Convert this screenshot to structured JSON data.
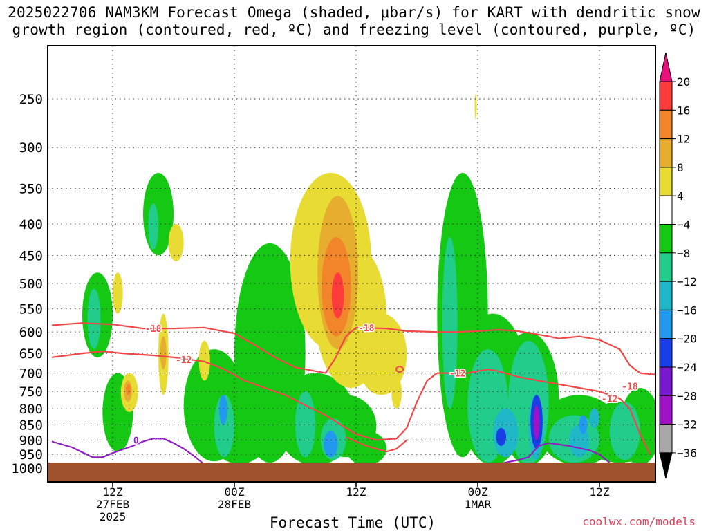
{
  "title_line1": "2025022706 NAM3KM Forecast Omega (shaded, μbar/s) for KART with dendritic snow",
  "title_line2": "growth region (contoured, red, ºC) and freezing level (contoured, purple, ºC)",
  "credit": "coolwx.com/models",
  "chart_data": {
    "type": "heatmap",
    "title": "2025022706 NAM3KM Forecast Omega (shaded, μbar/s) for KART with dendritic snow growth region (contoured, red, ºC) and freezing level (contoured, purple, ºC)",
    "xlabel": "Forecast Time (UTC)",
    "ylabel": "",
    "x_range_hours_from_init": [
      0,
      60
    ],
    "y_scale": "log pressure (hPa), inverted",
    "y_range": [
      1000,
      200
    ],
    "y_ticks": [
      250,
      300,
      350,
      400,
      450,
      500,
      550,
      600,
      650,
      700,
      750,
      800,
      850,
      900,
      950,
      1000
    ],
    "x_ticks": [
      {
        "hour": 6,
        "label1": "12Z",
        "label2": "27FEB",
        "label3": "2025"
      },
      {
        "hour": 18,
        "label1": "00Z",
        "label2": "28FEB",
        "label3": ""
      },
      {
        "hour": 30,
        "label1": "12Z",
        "label2": "",
        "label3": ""
      },
      {
        "hour": 42,
        "label1": "00Z",
        "label2": "1MAR",
        "label3": ""
      },
      {
        "hour": 54,
        "label1": "12Z",
        "label2": "",
        "label3": ""
      }
    ],
    "grid": true,
    "colorbar": {
      "ticks": [
        "20",
        "16",
        "12",
        "8",
        "4",
        "−4",
        "−8",
        "−12",
        "−16",
        "−20",
        "−24",
        "−28",
        "−32",
        "−36"
      ],
      "bins": [
        {
          "range": [
            16,
            20
          ],
          "color": "#ff3b3b"
        },
        {
          "range": [
            12,
            16
          ],
          "color": "#f2842a"
        },
        {
          "range": [
            8,
            12
          ],
          "color": "#e6ad2e"
        },
        {
          "range": [
            4,
            8
          ],
          "color": "#e8dc34"
        },
        {
          "range": [
            -4,
            4
          ],
          "color": "#ffffff"
        },
        {
          "range": [
            -8,
            -4
          ],
          "color": "#14c814"
        },
        {
          "range": [
            -12,
            -8
          ],
          "color": "#22cc8a"
        },
        {
          "range": [
            -16,
            -12
          ],
          "color": "#20b8c8"
        },
        {
          "range": [
            -20,
            -16
          ],
          "color": "#2299ee"
        },
        {
          "range": [
            -24,
            -20
          ],
          "color": "#1a3ee6"
        },
        {
          "range": [
            -28,
            -24
          ],
          "color": "#7a1ad0"
        },
        {
          "range": [
            -32,
            -28
          ],
          "color": "#a012c8"
        },
        {
          "range": [
            -36,
            -32
          ],
          "color": "#a8a8a8"
        }
      ],
      "over_color": "#e8107a",
      "under_color": "#000000"
    },
    "contour_labels": {
      "red": [
        "-18",
        "-12",
        "-18",
        "-12",
        "-18",
        "-12"
      ],
      "purple": [
        "0"
      ]
    },
    "colors": {
      "dgz_contour": "#f04848",
      "freezing_contour": "#9020c0",
      "terrain": "#a0522d"
    }
  }
}
